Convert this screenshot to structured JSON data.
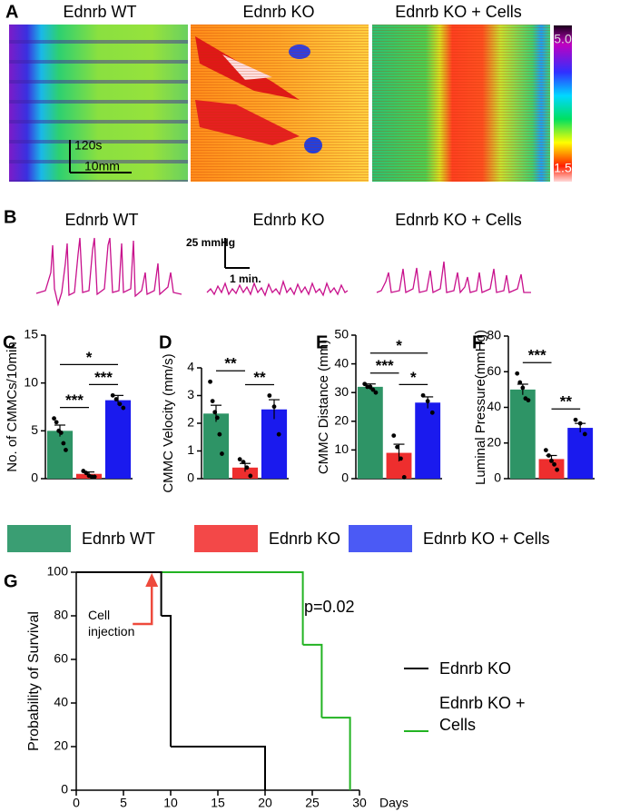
{
  "panel_a": {
    "letter": "A",
    "titles": [
      "Ednrb WT",
      "Ednrb KO",
      "Ednrb KO + Cells"
    ],
    "scale_time": "120s",
    "scale_length": "10mm",
    "colorbar_max": "5.0",
    "colorbar_min": "1.5"
  },
  "panel_b": {
    "letter": "B",
    "titles": [
      "Ednrb WT",
      "Ednrb KO",
      "Ednrb KO + Cells"
    ],
    "scale_pressure": "25 mmHg",
    "scale_time": "1 min."
  },
  "legend": [
    {
      "name": "Ednrb WT",
      "color": "#3a9e73"
    },
    {
      "name": "Ednrb KO",
      "color": "#f34848"
    },
    {
      "name": "Ednrb KO + Cells",
      "color": "#4b5af5"
    }
  ],
  "chart_data": [
    {
      "type": "bar",
      "panel": "C",
      "ylabel": "No. of CMMCs/10min",
      "categories": [
        null,
        null,
        null
      ],
      "values": [
        5.0,
        0.5,
        8.2
      ],
      "errors": [
        0.6,
        0.2,
        0.5
      ],
      "colors": [
        "#2e9466",
        "#ee2e2e",
        "#1a1aee"
      ],
      "points": [
        [
          6.3,
          5.9,
          5.0,
          4.8,
          3.7,
          3.0
        ],
        [
          0.8,
          0.6,
          0.3,
          0.2,
          0.2
        ],
        [
          8.7,
          8.3,
          7.8,
          7.4
        ]
      ],
      "significance": [
        {
          "pair": [
            0,
            1
          ],
          "label": "***"
        },
        {
          "pair": [
            1,
            2
          ],
          "label": "***"
        },
        {
          "pair": [
            0,
            2
          ],
          "label": "*"
        }
      ],
      "ylim": [
        0,
        15
      ],
      "yticks": [
        0,
        5,
        10,
        15
      ]
    },
    {
      "type": "bar",
      "panel": "D",
      "ylabel": "CMMC Velocity (mm/s)",
      "categories": [
        null,
        null,
        null
      ],
      "values": [
        2.35,
        0.4,
        2.5
      ],
      "errors": [
        0.3,
        0.15,
        0.35
      ],
      "colors": [
        "#2e9466",
        "#ee2e2e",
        "#1a1aee"
      ],
      "points": [
        [
          3.5,
          2.8,
          2.4,
          2.2,
          1.6,
          0.9
        ],
        [
          0.7,
          0.6,
          0.4,
          0.1
        ],
        [
          3.0,
          2.6,
          1.6
        ]
      ],
      "significance": [
        {
          "pair": [
            0,
            1
          ],
          "label": "**"
        },
        {
          "pair": [
            1,
            2
          ],
          "label": "**"
        }
      ],
      "ylim": [
        0,
        4
      ],
      "yticks": [
        0,
        1,
        2,
        3,
        4
      ]
    },
    {
      "type": "bar",
      "panel": "E",
      "ylabel": "CMMC Distance (mm)",
      "categories": [
        null,
        null,
        null
      ],
      "values": [
        32,
        9,
        26.5
      ],
      "errors": [
        1,
        3,
        2
      ],
      "colors": [
        "#2e9466",
        "#ee2e2e",
        "#1a1aee"
      ],
      "points": [
        [
          33,
          32,
          32,
          31,
          30
        ],
        [
          15,
          11,
          7,
          0.5
        ],
        [
          29,
          27,
          23
        ]
      ],
      "significance": [
        {
          "pair": [
            0,
            1
          ],
          "label": "***"
        },
        {
          "pair": [
            1,
            2
          ],
          "label": "*"
        },
        {
          "pair": [
            0,
            2
          ],
          "label": "*"
        }
      ],
      "ylim": [
        0,
        50
      ],
      "yticks": [
        0,
        10,
        20,
        30,
        40,
        50
      ]
    },
    {
      "type": "bar",
      "panel": "F",
      "ylabel": "Luminal Pressure(mmHg)",
      "categories": [
        null,
        null,
        null
      ],
      "values": [
        50,
        11,
        28.5
      ],
      "errors": [
        3,
        2,
        2.5
      ],
      "colors": [
        "#2e9466",
        "#ee2e2e",
        "#1a1aee"
      ],
      "points": [
        [
          59,
          54,
          51,
          45,
          44
        ],
        [
          16,
          13,
          10,
          8,
          5
        ],
        [
          33,
          31,
          25
        ]
      ],
      "significance": [
        {
          "pair": [
            0,
            1
          ],
          "label": "***"
        },
        {
          "pair": [
            1,
            2
          ],
          "label": "**"
        }
      ],
      "ylim": [
        0,
        80
      ],
      "yticks": [
        0,
        20,
        40,
        60,
        80
      ]
    },
    {
      "type": "step",
      "panel": "G",
      "xlabel": "Days",
      "ylabel": "Probability of Survival",
      "xlim": [
        0,
        30
      ],
      "xticks": [
        0,
        5,
        10,
        15,
        20,
        25,
        30
      ],
      "ylim": [
        0,
        100
      ],
      "yticks": [
        0,
        20,
        40,
        60,
        80,
        100
      ],
      "series": [
        {
          "name": "Ednrb KO + Cells",
          "color": "#22b322",
          "x": [
            0,
            24,
            26,
            29
          ],
          "values": [
            100,
            66.7,
            33.3,
            0
          ]
        },
        {
          "name": "Ednrb KO",
          "color": "#000000",
          "x": [
            0,
            9,
            10,
            20
          ],
          "values": [
            100,
            80,
            20,
            0
          ]
        }
      ],
      "annotations": [
        {
          "text": "p=0.02"
        },
        {
          "text": "Cell injection",
          "x": 8
        }
      ]
    }
  ]
}
